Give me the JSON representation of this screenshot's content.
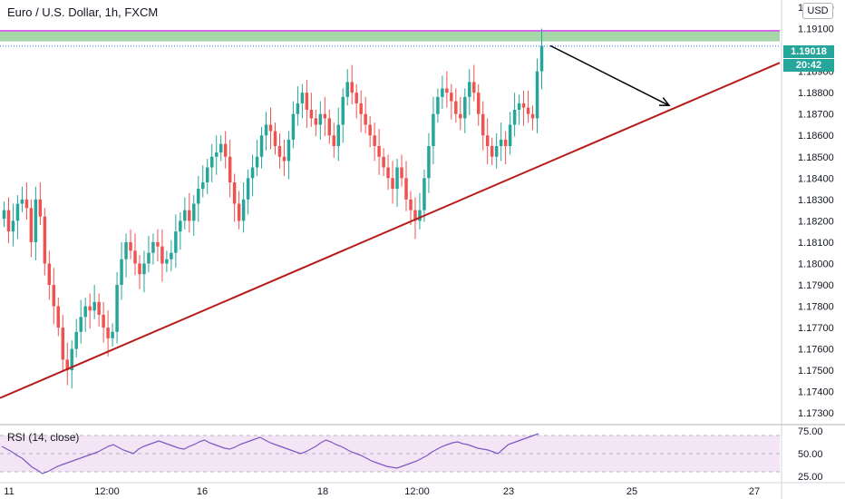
{
  "header": {
    "symbol": "Euro / U.S. Dollar, 1h, FXCM",
    "currency": "USD"
  },
  "price_badges": {
    "last_price": "1.19018",
    "countdown": "20:42"
  },
  "colors": {
    "up": "#26a69a",
    "down": "#ef5350",
    "trendline": "#b71c1c",
    "zone_fill": "#a5d6a7",
    "zone_border": "#e040fb",
    "rsi_line": "#7e57c2",
    "rsi_band": "#f3e5f5",
    "arrow": "#000000"
  },
  "chart_data": [
    {
      "type": "candlestick",
      "title": "Euro / U.S. Dollar, 1h, FXCM",
      "ylim": [
        1.1725,
        1.192
      ],
      "y_ticks": [
        "1.19200",
        "1.19100",
        "1.18900",
        "1.18800",
        "1.18700",
        "1.18600",
        "1.18500",
        "1.18400",
        "1.18300",
        "1.18200",
        "1.18100",
        "1.18000",
        "1.17900",
        "1.17800",
        "1.17700",
        "1.17600",
        "1.17500",
        "1.17400",
        "1.17300"
      ],
      "x_ticks": [
        "11",
        "12:00",
        "16",
        "18",
        "12:00",
        "23",
        "25",
        "27"
      ],
      "current_price": 1.19018,
      "resistance_zone": [
        1.1904,
        1.1909
      ],
      "trendline": {
        "from": {
          "x": "11",
          "y": 1.1737
        },
        "to": {
          "x": "27",
          "y": 1.1894
        }
      },
      "arrow": {
        "from": {
          "y": 1.1902
        },
        "to": {
          "y": 1.1874
        }
      },
      "candles_close": [
        1.1825,
        1.1815,
        1.182,
        1.1828,
        1.183,
        1.1826,
        1.181,
        1.183,
        1.1822,
        1.18,
        1.179,
        1.178,
        1.177,
        1.1755,
        1.175,
        1.176,
        1.1768,
        1.1775,
        1.178,
        1.1778,
        1.1782,
        1.1776,
        1.177,
        1.1765,
        1.1768,
        1.179,
        1.1802,
        1.181,
        1.1806,
        1.18,
        1.1795,
        1.18,
        1.1805,
        1.181,
        1.1808,
        1.18,
        1.1802,
        1.1805,
        1.1815,
        1.182,
        1.1825,
        1.182,
        1.1828,
        1.1835,
        1.1838,
        1.1845,
        1.185,
        1.1852,
        1.1856,
        1.185,
        1.1838,
        1.1828,
        1.182,
        1.183,
        1.184,
        1.1845,
        1.185,
        1.186,
        1.1865,
        1.1862,
        1.1855,
        1.185,
        1.1848,
        1.1858,
        1.187,
        1.1875,
        1.188,
        1.1872,
        1.1868,
        1.1865,
        1.187,
        1.1868,
        1.186,
        1.1855,
        1.1865,
        1.1878,
        1.1885,
        1.188,
        1.1875,
        1.187,
        1.1865,
        1.186,
        1.1855,
        1.185,
        1.1845,
        1.184,
        1.1835,
        1.1845,
        1.184,
        1.183,
        1.1825,
        1.182,
        1.1825,
        1.184,
        1.1855,
        1.187,
        1.1878,
        1.1882,
        1.188,
        1.1876,
        1.187,
        1.1868,
        1.1878,
        1.1885,
        1.188,
        1.187,
        1.186,
        1.1855,
        1.185,
        1.1855,
        1.1858,
        1.1855,
        1.1865,
        1.1872,
        1.1875,
        1.1873,
        1.187,
        1.1868,
        1.189,
        1.1902
      ],
      "candles_open_offset": 0.0004
    },
    {
      "type": "line",
      "title": "RSI (14, close)",
      "ylim": [
        20,
        80
      ],
      "y_ticks": [
        "75.00",
        "50.00",
        "25.00"
      ],
      "band": [
        30,
        70
      ],
      "values": [
        58,
        55,
        52,
        48,
        45,
        40,
        35,
        32,
        28,
        30,
        33,
        36,
        38,
        40,
        42,
        44,
        46,
        48,
        50,
        52,
        55,
        58,
        60,
        57,
        54,
        52,
        50,
        55,
        58,
        60,
        62,
        64,
        62,
        60,
        58,
        56,
        55,
        58,
        60,
        63,
        65,
        62,
        60,
        58,
        56,
        55,
        57,
        60,
        62,
        64,
        66,
        68,
        65,
        62,
        60,
        58,
        56,
        54,
        52,
        50,
        52,
        55,
        58,
        62,
        65,
        63,
        60,
        58,
        55,
        52,
        50,
        48,
        45,
        42,
        40,
        38,
        36,
        35,
        34,
        36,
        38,
        40,
        42,
        45,
        48,
        52,
        55,
        58,
        60,
        62,
        63,
        61,
        60,
        58,
        56,
        55,
        54,
        52,
        50,
        55,
        60,
        62,
        64,
        66,
        68,
        70,
        72
      ]
    }
  ]
}
